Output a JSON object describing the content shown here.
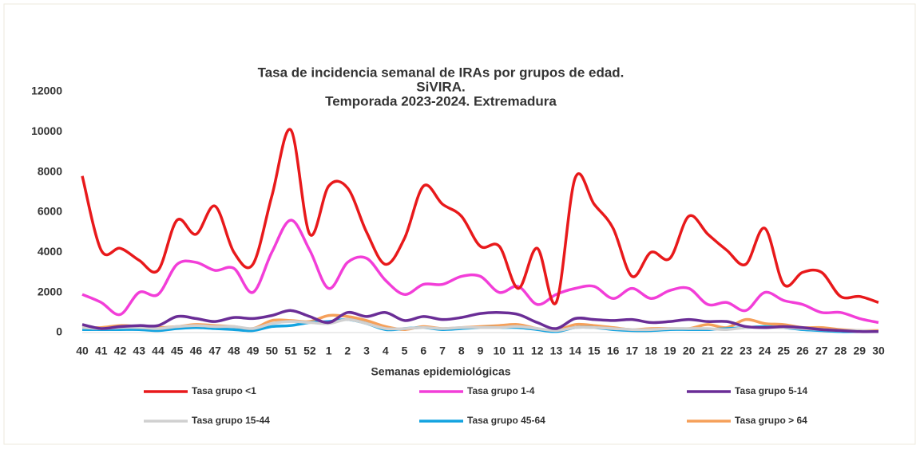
{
  "chart_data": {
    "type": "line",
    "title": "Tasa de incidencia semanal de IRAs por grupos de edad.",
    "subtitle": "SiVIRA.",
    "subtitle2": "Temporada 2023-2024. Extremadura",
    "x_label": "Semanas epidemiológicas",
    "categories": [
      "40",
      "41",
      "42",
      "43",
      "44",
      "45",
      "46",
      "47",
      "48",
      "49",
      "50",
      "51",
      "52",
      "1",
      "2",
      "3",
      "4",
      "5",
      "6",
      "7",
      "8",
      "9",
      "10",
      "11",
      "12",
      "13",
      "14",
      "15",
      "16",
      "17",
      "18",
      "19",
      "20",
      "21",
      "22",
      "23",
      "24",
      "25",
      "26",
      "27",
      "28",
      "29",
      "30"
    ],
    "ylim": [
      0,
      12000
    ],
    "yticks": [
      0,
      2000,
      4000,
      6000,
      8000,
      10000,
      12000
    ],
    "series": [
      {
        "name": "Tasa grupo <1",
        "color": "#e8191b",
        "values": [
          7800,
          4100,
          4200,
          3600,
          3100,
          5600,
          4900,
          6300,
          4000,
          3400,
          6800,
          10100,
          4900,
          7300,
          7200,
          5000,
          3400,
          4700,
          7300,
          6400,
          5800,
          4300,
          4300,
          2200,
          4200,
          1500,
          7700,
          6400,
          5200,
          2800,
          4000,
          3700,
          5800,
          4900,
          4100,
          3400,
          5200,
          2400,
          3000,
          3000,
          1800,
          1800,
          1500
        ]
      },
      {
        "name": "Tasa grupo 1-4",
        "color": "#f23ed8",
        "values": [
          1900,
          1500,
          900,
          2000,
          1900,
          3400,
          3500,
          3100,
          3200,
          2000,
          4000,
          5600,
          4100,
          2200,
          3500,
          3700,
          2600,
          1900,
          2400,
          2400,
          2800,
          2800,
          2000,
          2300,
          1400,
          1900,
          2200,
          2300,
          1700,
          2200,
          1700,
          2100,
          2200,
          1400,
          1500,
          1100,
          2000,
          1600,
          1400,
          1000,
          1000,
          700,
          500
        ]
      },
      {
        "name": "Tasa grupo 5-14",
        "color": "#6a2d96",
        "values": [
          400,
          200,
          300,
          350,
          350,
          800,
          700,
          550,
          750,
          700,
          850,
          1100,
          800,
          500,
          1000,
          800,
          1000,
          600,
          800,
          650,
          750,
          950,
          1000,
          900,
          500,
          200,
          700,
          650,
          600,
          650,
          500,
          550,
          650,
          550,
          550,
          300,
          250,
          300,
          250,
          150,
          100,
          50,
          50
        ]
      },
      {
        "name": "Tasa grupo 15-44",
        "color": "#d0d0d0",
        "values": [
          250,
          200,
          250,
          250,
          200,
          300,
          350,
          300,
          300,
          200,
          450,
          550,
          500,
          450,
          650,
          450,
          200,
          200,
          250,
          200,
          250,
          250,
          250,
          300,
          200,
          100,
          250,
          250,
          200,
          150,
          150,
          200,
          200,
          200,
          150,
          250,
          250,
          250,
          200,
          150,
          100,
          100,
          50
        ]
      },
      {
        "name": "Tasa grupo 45-64",
        "color": "#13a3e0",
        "values": [
          150,
          150,
          150,
          150,
          100,
          200,
          250,
          200,
          150,
          100,
          300,
          350,
          500,
          550,
          650,
          450,
          150,
          200,
          250,
          150,
          200,
          250,
          250,
          250,
          150,
          50,
          250,
          250,
          150,
          100,
          100,
          150,
          150,
          150,
          200,
          250,
          300,
          250,
          150,
          100,
          50,
          50,
          50
        ]
      },
      {
        "name": "Tasa grupo > 64",
        "color": "#f5a05a",
        "values": [
          250,
          250,
          350,
          300,
          250,
          300,
          400,
          350,
          300,
          200,
          600,
          600,
          550,
          850,
          800,
          600,
          300,
          150,
          300,
          200,
          250,
          300,
          350,
          400,
          200,
          100,
          400,
          350,
          250,
          150,
          200,
          200,
          200,
          400,
          250,
          650,
          450,
          400,
          250,
          250,
          150,
          100,
          100
        ]
      }
    ]
  }
}
